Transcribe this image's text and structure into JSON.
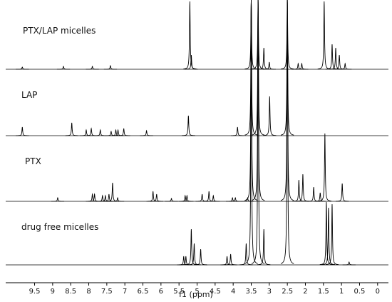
{
  "chart_data": {
    "type": "spectrum",
    "xlabel": "f1 (ppm)",
    "xlim": [
      10.3,
      -0.3
    ],
    "xticks": [
      9.5,
      9.0,
      8.5,
      8.0,
      7.5,
      7.0,
      6.5,
      6.0,
      5.5,
      5.0,
      4.5,
      4.0,
      3.5,
      3.0,
      2.5,
      2.0,
      1.5,
      1.0,
      0.5,
      0.0
    ],
    "series": [
      {
        "name": "PTX/LAP micelles",
        "color": "#000000",
        "x": [
          9.84,
          8.7,
          7.9,
          7.4,
          5.2,
          5.16,
          3.5,
          3.31,
          3.15,
          3.0,
          2.5,
          2.2,
          2.1,
          1.48,
          1.26,
          1.16,
          1.06,
          0.9
        ],
        "values": [
          3,
          4,
          4,
          5,
          95,
          20,
          95,
          95,
          30,
          10,
          95,
          8,
          8,
          95,
          35,
          30,
          20,
          8
        ]
      },
      {
        "name": "LAP",
        "color": "#000000",
        "x": [
          9.84,
          8.47,
          8.07,
          7.93,
          7.68,
          7.38,
          7.25,
          7.19,
          7.03,
          6.4,
          5.24,
          3.88,
          3.5,
          3.31,
          2.99,
          2.5
        ],
        "values": [
          12,
          18,
          8,
          10,
          8,
          6,
          8,
          8,
          10,
          7,
          28,
          12,
          190,
          190,
          55,
          190
        ]
      },
      {
        "name": "PTX",
        "color": "#000000",
        "x": [
          8.86,
          7.9,
          7.84,
          7.62,
          7.54,
          7.44,
          7.34,
          7.2,
          6.22,
          6.12,
          5.71,
          5.33,
          5.28,
          4.86,
          4.67,
          4.55,
          4.02,
          3.94,
          3.6,
          3.5,
          3.31,
          2.5,
          2.18,
          2.07,
          1.77,
          1.59,
          1.46,
          0.98
        ],
        "values": [
          5,
          10,
          10,
          8,
          8,
          10,
          26,
          5,
          14,
          10,
          4,
          8,
          8,
          10,
          14,
          8,
          5,
          5,
          5,
          285,
          285,
          285,
          30,
          38,
          20,
          12,
          95,
          25
        ]
      },
      {
        "name": "drug free micelles",
        "color": "#000000",
        "x": [
          5.37,
          5.31,
          5.16,
          5.08,
          4.9,
          4.17,
          4.07,
          3.64,
          3.5,
          3.31,
          3.15,
          2.5,
          1.42,
          1.36,
          1.26,
          0.79
        ],
        "values": [
          12,
          12,
          50,
          30,
          22,
          12,
          15,
          30,
          375,
          375,
          50,
          375,
          88,
          80,
          85,
          4
        ]
      }
    ]
  }
}
